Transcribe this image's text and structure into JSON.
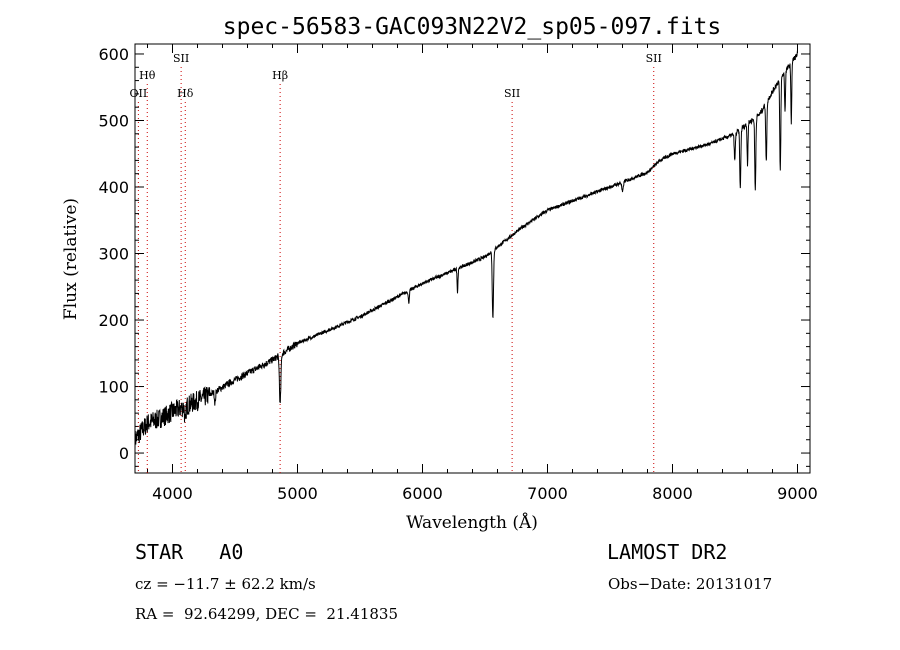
{
  "chart_data": {
    "type": "line",
    "title": "spec-56583-GAC093N22V2_sp05-097.fits",
    "xlabel": "Wavelength (Å)",
    "ylabel": "Flux (relative)",
    "xlim": [
      3700,
      9100
    ],
    "ylim": [
      -30,
      615
    ],
    "x_ticks": [
      4000,
      5000,
      6000,
      7000,
      8000,
      9000
    ],
    "y_ticks": [
      0,
      100,
      200,
      300,
      400,
      500,
      600
    ],
    "line_color": "#000000",
    "marker_color": "#cc0000",
    "spectral_lines": [
      {
        "label": "OII",
        "wavelength": 3727,
        "row": 3
      },
      {
        "label": "Hθ",
        "wavelength": 3798,
        "row": 2
      },
      {
        "label": "SII",
        "wavelength": 4069,
        "row": 1
      },
      {
        "label": "Hδ",
        "wavelength": 4102,
        "row": 3
      },
      {
        "label": "Hβ",
        "wavelength": 4861,
        "row": 2
      },
      {
        "label": "SII",
        "wavelength": 6717,
        "row": 3
      },
      {
        "label": "SII",
        "wavelength": 7850,
        "row": 1
      }
    ],
    "continuum": [
      [
        3700,
        20
      ],
      [
        3800,
        45
      ],
      [
        3900,
        52
      ],
      [
        4000,
        62
      ],
      [
        4100,
        70
      ],
      [
        4300,
        88
      ],
      [
        4500,
        110
      ],
      [
        4800,
        140
      ],
      [
        5000,
        165
      ],
      [
        5500,
        205
      ],
      [
        6000,
        255
      ],
      [
        6500,
        295
      ],
      [
        6800,
        340
      ],
      [
        7000,
        365
      ],
      [
        7500,
        400
      ],
      [
        7800,
        422
      ],
      [
        7900,
        440
      ],
      [
        8000,
        450
      ],
      [
        8300,
        465
      ],
      [
        8500,
        480
      ],
      [
        8700,
        510
      ],
      [
        8850,
        560
      ],
      [
        9000,
        600
      ]
    ],
    "absorption_features": [
      {
        "x": 4102,
        "depth": 30,
        "width": 6
      },
      {
        "x": 4340,
        "depth": 18,
        "width": 6
      },
      {
        "x": 4861,
        "depth": 75,
        "width": 8
      },
      {
        "x": 5890,
        "depth": 18,
        "width": 6
      },
      {
        "x": 6280,
        "depth": 35,
        "width": 5
      },
      {
        "x": 6563,
        "depth": 100,
        "width": 7
      },
      {
        "x": 7600,
        "depth": 15,
        "width": 8
      },
      {
        "x": 8498,
        "depth": 40,
        "width": 6
      },
      {
        "x": 8542,
        "depth": 90,
        "width": 6
      },
      {
        "x": 8600,
        "depth": 60,
        "width": 5
      },
      {
        "x": 8662,
        "depth": 110,
        "width": 6
      },
      {
        "x": 8750,
        "depth": 90,
        "width": 6
      },
      {
        "x": 8862,
        "depth": 140,
        "width": 6
      },
      {
        "x": 8900,
        "depth": 60,
        "width": 5
      },
      {
        "x": 8950,
        "depth": 90,
        "width": 5
      }
    ]
  },
  "info": {
    "class": "STAR   A0",
    "survey": "LAMOST DR2",
    "cz": "cz = −11.7 ± 62.2 km/s",
    "obs_date": "Obs−Date: 20131017",
    "coords": "RA =  92.64299, DEC =  21.41835"
  }
}
